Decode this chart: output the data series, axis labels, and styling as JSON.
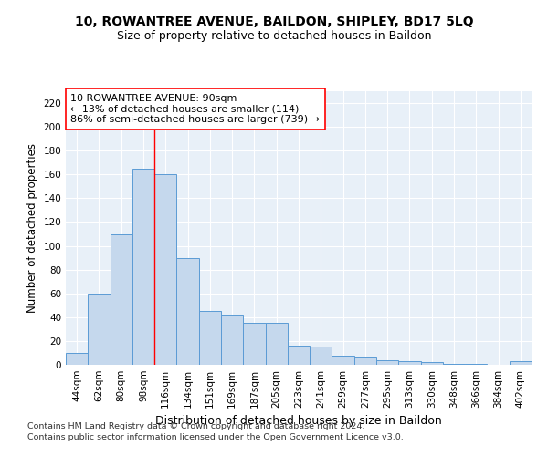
{
  "title1": "10, ROWANTREE AVENUE, BAILDON, SHIPLEY, BD17 5LQ",
  "title2": "Size of property relative to detached houses in Baildon",
  "xlabel": "Distribution of detached houses by size in Baildon",
  "ylabel": "Number of detached properties",
  "categories": [
    "44sqm",
    "62sqm",
    "80sqm",
    "98sqm",
    "116sqm",
    "134sqm",
    "151sqm",
    "169sqm",
    "187sqm",
    "205sqm",
    "223sqm",
    "241sqm",
    "259sqm",
    "277sqm",
    "295sqm",
    "313sqm",
    "330sqm",
    "348sqm",
    "366sqm",
    "384sqm",
    "402sqm"
  ],
  "values": [
    10,
    60,
    110,
    165,
    160,
    90,
    45,
    42,
    35,
    35,
    16,
    15,
    8,
    7,
    4,
    3,
    2,
    1,
    1,
    0,
    3
  ],
  "bar_color": "#c5d8ed",
  "bar_edge_color": "#5b9bd5",
  "marker_label_line1": "10 ROWANTREE AVENUE: 90sqm",
  "marker_label_line2": "← 13% of detached houses are smaller (114)",
  "marker_label_line3": "86% of semi-detached houses are larger (739) →",
  "vline_x_index": 3.5,
  "ylim": [
    0,
    230
  ],
  "yticks": [
    0,
    20,
    40,
    60,
    80,
    100,
    120,
    140,
    160,
    180,
    200,
    220
  ],
  "footnote1": "Contains HM Land Registry data © Crown copyright and database right 2024.",
  "footnote2": "Contains public sector information licensed under the Open Government Licence v3.0.",
  "background_color": "#e8f0f8",
  "grid_color": "#ffffff",
  "title_fontsize": 10,
  "subtitle_fontsize": 9,
  "axis_label_fontsize": 8.5,
  "tick_fontsize": 7.5,
  "annotation_fontsize": 8,
  "footnote_fontsize": 6.8
}
